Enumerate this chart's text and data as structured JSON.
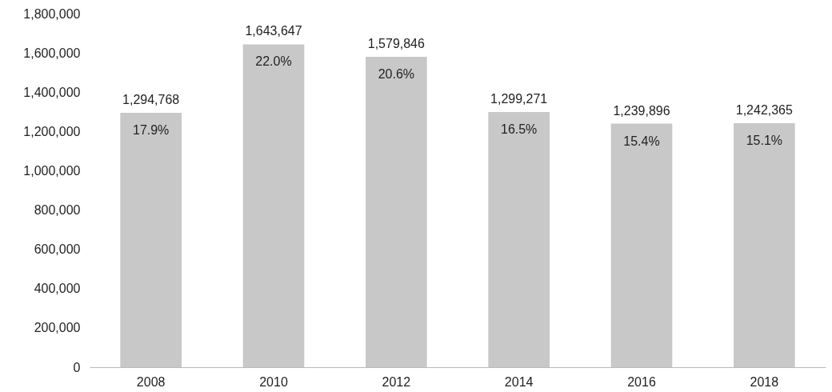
{
  "chart_data": {
    "type": "bar",
    "categories": [
      "2008",
      "2010",
      "2012",
      "2014",
      "2016",
      "2018"
    ],
    "values": [
      1294768,
      1643647,
      1579846,
      1299271,
      1239896,
      1242365
    ],
    "value_labels": [
      "1,294,768",
      "1,643,647",
      "1,579,846",
      "1,299,271",
      "1,239,896",
      "1,242,365"
    ],
    "color": "#c8c8c8",
    "ylim": [
      0,
      1800000
    ],
    "yticks": [
      0,
      {
        "value": 200000,
        "label": "200,000"
      },
      {
        "value": 400000,
        "label": "400,000"
      },
      {
        "value": 600000,
        "label": "600,000"
      },
      {
        "value": 800000,
        "label": "800,000"
      },
      {
        "value": 1000000,
        "label": "1,000,000"
      },
      {
        "value": 1200000,
        "label": "1,200,000"
      },
      {
        "value": 1400000,
        "label": "1,400,000"
      },
      {
        "value": 1600000,
        "label": "1,600,000"
      },
      {
        "value": 1800000,
        "label": "1,800,000"
      }
    ],
    "grid": false,
    "annotations": [
      {
        "text": "17.9%",
        "x": "2008",
        "y": 1294768
      },
      {
        "text": "22.0%",
        "x": "2010",
        "y": 1643647
      },
      {
        "text": "20.6%",
        "x": "2012",
        "y": 1579846
      },
      {
        "text": "16.5%",
        "x": "2014",
        "y": 1299271
      },
      {
        "text": "15.4%",
        "x": "2016",
        "y": 1239896
      },
      {
        "text": "15.1%",
        "x": "2018",
        "y": 1242365
      }
    ]
  }
}
